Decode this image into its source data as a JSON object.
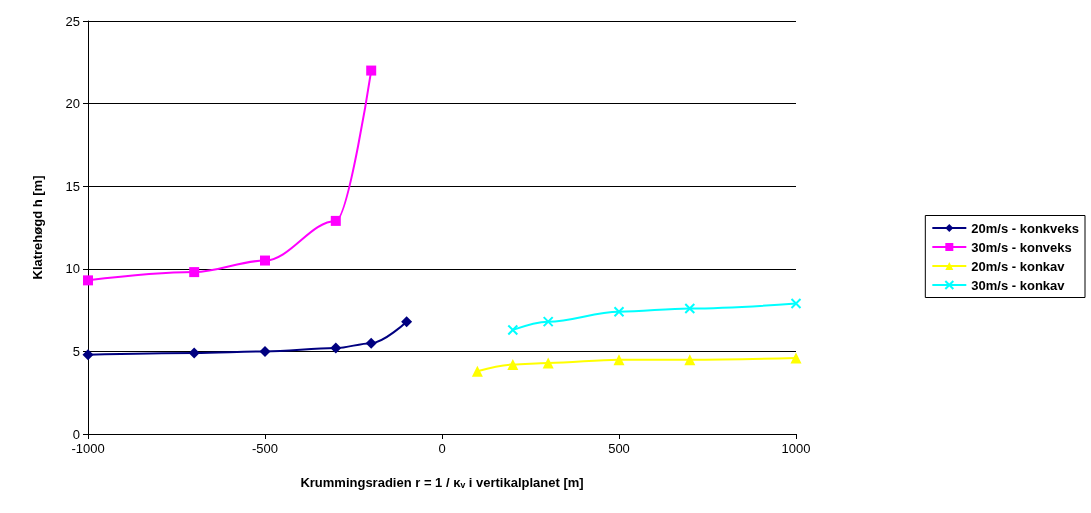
{
  "chart_data": {
    "type": "line",
    "xlabel": "Krummingsradien r = 1 / κᵥ i vertikalplanet [m]",
    "ylabel": "Klatrehøgd h [m]",
    "xlim": [
      -1000,
      1000
    ],
    "xticks": [
      -1000,
      -500,
      0,
      500,
      1000
    ],
    "ylim": [
      0,
      25
    ],
    "yticks": [
      0,
      5,
      10,
      15,
      20,
      25
    ],
    "grid": "y",
    "legend": "right",
    "line_style": "solid",
    "series": [
      {
        "name": "20m/s - konkveks",
        "color": "#000080",
        "marker": "diamond",
        "x": [
          -1000,
          -700,
          -500,
          -300,
          -200,
          -100
        ],
        "values": [
          4.8,
          4.9,
          5.0,
          5.2,
          5.5,
          6.8
        ]
      },
      {
        "name": "30m/s - konveks",
        "color": "#ff00ff",
        "marker": "square",
        "x": [
          -1000,
          -700,
          -500,
          -300,
          -200
        ],
        "values": [
          9.3,
          9.8,
          10.5,
          12.9,
          22.0
        ]
      },
      {
        "name": "20m/s - konkav",
        "color": "#ffff00",
        "marker": "triangle",
        "x": [
          100,
          200,
          300,
          500,
          700,
          1000
        ],
        "values": [
          3.8,
          4.2,
          4.3,
          4.5,
          4.5,
          4.6
        ]
      },
      {
        "name": "30m/s - konkav",
        "color": "#00ffff",
        "marker": "cross",
        "x": [
          200,
          300,
          500,
          700,
          1000
        ],
        "values": [
          6.3,
          6.8,
          7.4,
          7.6,
          7.9
        ]
      }
    ]
  }
}
